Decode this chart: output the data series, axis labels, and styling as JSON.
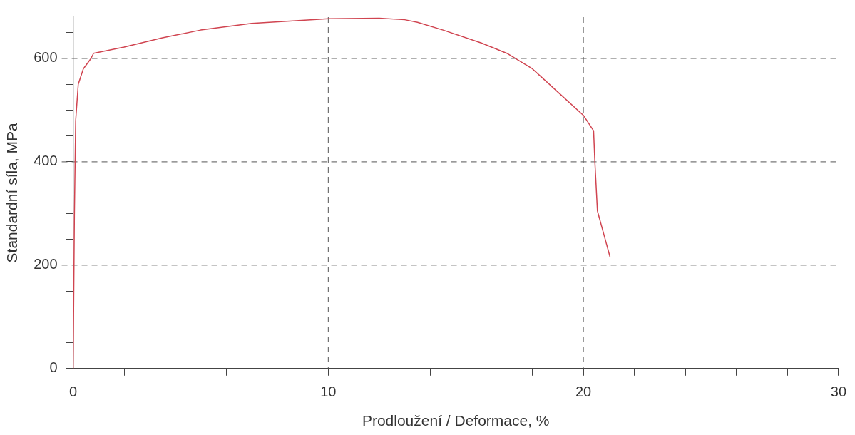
{
  "chart_data": {
    "type": "line",
    "xlabel": "Prodloužení / Deformace, %",
    "ylabel": "Standardní síla, MPa",
    "xlim": [
      0,
      30
    ],
    "ylim": [
      0,
      680
    ],
    "xticks": [
      0,
      {
        "value": 2,
        "label": null
      },
      {
        "value": 4,
        "label": null
      },
      {
        "value": 6,
        "label": null
      },
      {
        "value": 8,
        "label": null
      },
      10,
      {
        "value": 12,
        "label": null
      },
      {
        "value": 14,
        "label": null
      },
      {
        "value": 16,
        "label": null
      },
      {
        "value": 18,
        "label": null
      },
      20,
      {
        "value": 22,
        "label": null
      },
      {
        "value": 24,
        "label": null
      },
      {
        "value": 26,
        "label": null
      },
      {
        "value": 28,
        "label": null
      },
      30
    ],
    "yticks": [
      0,
      {
        "value": 50,
        "label": null
      },
      {
        "value": 100,
        "label": null
      },
      {
        "value": 150,
        "label": null
      },
      200,
      {
        "value": 250,
        "label": null
      },
      {
        "value": 300,
        "label": null
      },
      {
        "value": 350,
        "label": null
      },
      400,
      {
        "value": 450,
        "label": null
      },
      {
        "value": 500,
        "label": null
      },
      {
        "value": 550,
        "label": null
      },
      600,
      {
        "value": 650,
        "label": null
      }
    ],
    "grid": true,
    "legend": false,
    "marker": "none",
    "line_style": "solid",
    "series": [
      {
        "color": "#d04450",
        "x": [
          0,
          0.05,
          0.1,
          0.2,
          0.4,
          0.7,
          0.8,
          2,
          3.5,
          5,
          7,
          10,
          12,
          13,
          13.5,
          14.5,
          16,
          17,
          18,
          19,
          20,
          20.4,
          20.45,
          20.55,
          20.8,
          21.05
        ],
        "values": [
          0,
          300,
          480,
          550,
          580,
          600,
          610,
          622,
          640,
          655,
          668,
          677,
          678,
          675,
          670,
          655,
          630,
          610,
          580,
          535,
          490,
          460,
          400,
          305,
          260,
          215
        ]
      }
    ]
  }
}
